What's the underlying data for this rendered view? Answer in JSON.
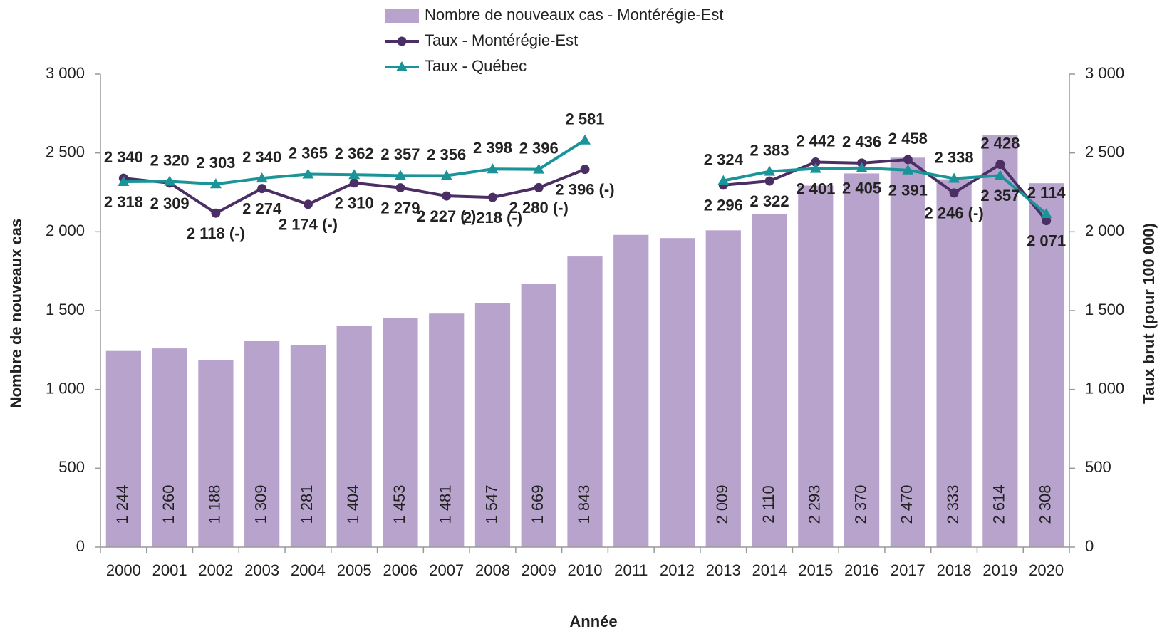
{
  "chart_data": {
    "type": "bar",
    "categories": [
      "2000",
      "2001",
      "2002",
      "2003",
      "2004",
      "2005",
      "2006",
      "2007",
      "2008",
      "2009",
      "2010",
      "2011",
      "2012",
      "2013",
      "2014",
      "2015",
      "2016",
      "2017",
      "2018",
      "2019",
      "2020"
    ],
    "x_label": "Année",
    "y_label": "Nombre de nouveaux cas",
    "y2_label": "Taux brut (pour 100 000)",
    "ylim": [
      0,
      3000
    ],
    "yticks": [
      0,
      500,
      {
        "value": 1000,
        "label": "1 000"
      },
      {
        "value": 1500,
        "label": "1 500"
      },
      {
        "value": 2000,
        "label": "2 000"
      },
      {
        "value": 2500,
        "label": "2 500"
      },
      {
        "value": 3000,
        "label": "3 000"
      }
    ],
    "y2lim": [
      0,
      3000
    ],
    "y2ticks": [
      0,
      500,
      {
        "value": 1000,
        "label": "1 000"
      },
      {
        "value": 1500,
        "label": "1 500"
      },
      {
        "value": 2000,
        "label": "2 000"
      },
      {
        "value": 2500,
        "label": "2 500"
      },
      {
        "value": 3000,
        "label": "3 000"
      }
    ],
    "legend": "top",
    "series": [
      {
        "name": "Nombre de nouveaux cas - Montérégie-Est",
        "type": "bar",
        "color": "#b8a3cc",
        "values": [
          1244,
          1260,
          1188,
          1309,
          1281,
          1404,
          1453,
          1481,
          1547,
          1669,
          1843,
          1980,
          1960,
          2009,
          2110,
          2293,
          2370,
          2470,
          2333,
          2614,
          2308
        ],
        "value_labels": [
          "1 244",
          "1 260",
          "1 188",
          "1 309",
          "1 281",
          "1 404",
          "1 453",
          "1 481",
          "1 547",
          "1 669",
          "1 843",
          null,
          null,
          "2 009",
          "2 110",
          "2 293",
          "2 370",
          "2 470",
          "2 333",
          "2 614",
          "2 308"
        ]
      },
      {
        "name": "Taux - Montérégie-Est",
        "type": "line",
        "axis": "y2",
        "marker": "circle",
        "color": "#4b2e63",
        "values": [
          2340,
          2309,
          2118,
          2274,
          2174,
          2310,
          2279,
          2227,
          2218,
          2280,
          2396,
          null,
          null,
          2296,
          2322,
          2442,
          2436,
          2458,
          2246,
          2428,
          2071
        ],
        "value_labels": [
          "2 340",
          "2 309",
          "2 118 (-)",
          "2 274",
          "2 174 (-)",
          "2 310",
          "2 279",
          "2 227 (-)",
          "2 218 (-)",
          "2 280 (-)",
          "2 396 (-)",
          null,
          null,
          "2 296",
          "2 322",
          "2 442",
          "2 436",
          "2 458",
          "2 246 (-)",
          "2 428",
          "2 071"
        ]
      },
      {
        "name": "Taux - Québec",
        "type": "line",
        "axis": "y2",
        "marker": "triangle",
        "color": "#1a9399",
        "values": [
          2318,
          2320,
          2303,
          2340,
          2365,
          2362,
          2357,
          2356,
          2398,
          2396,
          2581,
          null,
          null,
          2324,
          2383,
          2401,
          2405,
          2391,
          2338,
          2357,
          2114
        ],
        "value_labels": [
          "2 318",
          "2 320",
          "2 303",
          "2 340",
          "2 365",
          "2 362",
          "2 357",
          "2 356",
          "2 398",
          "2 396",
          "2 581",
          null,
          null,
          "2 324",
          "2 383",
          "2 401",
          "2 405",
          "2 391",
          "2 338",
          "2 357",
          "2 114"
        ]
      }
    ]
  }
}
